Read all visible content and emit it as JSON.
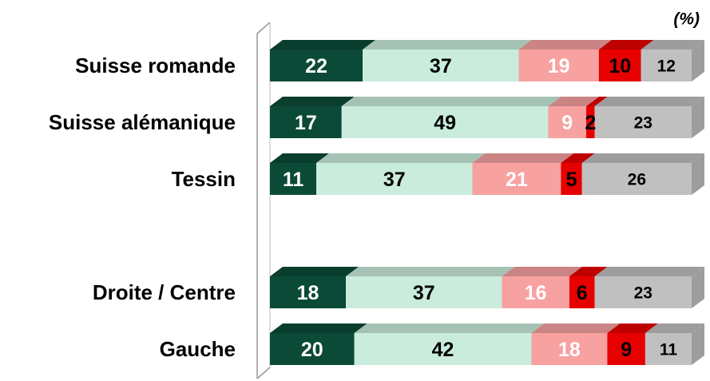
{
  "chart_data": {
    "type": "stacked-bar-horizontal",
    "annotation": "(%)",
    "categories": [
      "Suisse romande",
      "Suisse alémanique",
      "Tessin",
      null,
      "Droite / Centre",
      "Gauche"
    ],
    "xlim": [
      0,
      100
    ],
    "series": [
      {
        "color": "#0b4a37",
        "label_color": "#ffffff",
        "values": [
          22,
          17,
          11,
          null,
          18,
          20
        ]
      },
      {
        "color": "#c9ecdd",
        "label_color": "#000000",
        "values": [
          37,
          49,
          37,
          null,
          37,
          42
        ]
      },
      {
        "color": "#f7a1a1",
        "label_color": "#ffffff",
        "values": [
          19,
          9,
          21,
          null,
          16,
          18
        ]
      },
      {
        "color": "#e60000",
        "label_color": "#000000",
        "values": [
          10,
          2,
          5,
          null,
          6,
          9
        ]
      },
      {
        "color": "#c0c0c0",
        "label_color": "#000000",
        "values": [
          12,
          23,
          26,
          null,
          23,
          11
        ]
      }
    ]
  }
}
